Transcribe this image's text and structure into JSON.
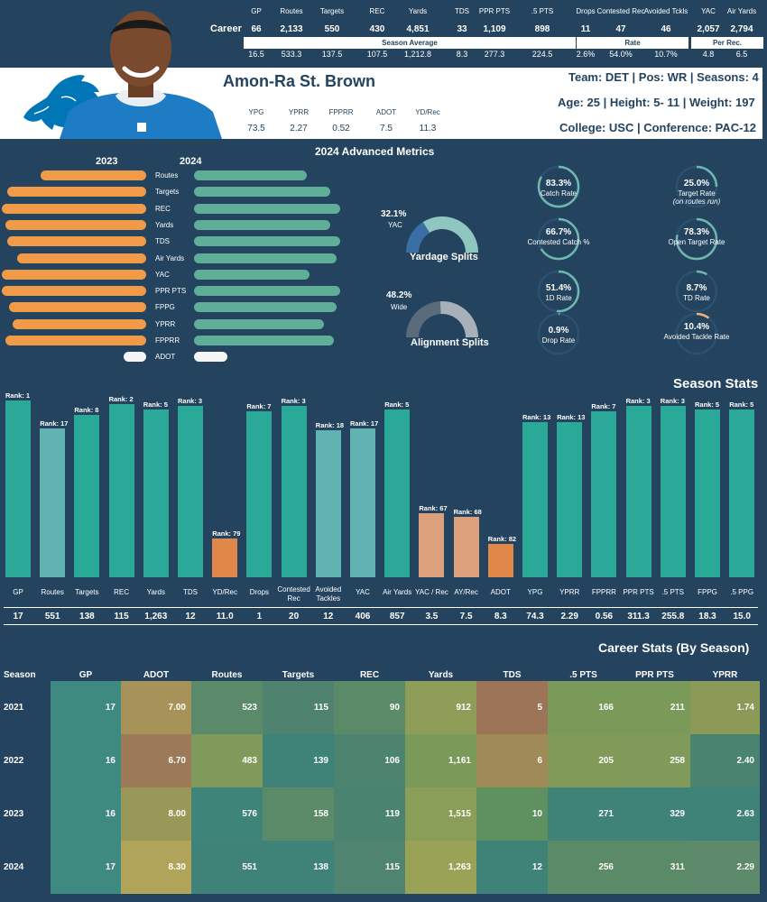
{
  "player": {
    "name": "Amon-Ra St. Brown",
    "team_line": "Team: DET  | Pos: WR | Seasons: 4",
    "bio_line": "Age: 25 | Height: 5- 11 | Weight: 197",
    "college_line": "College: USC  | Conference: PAC-12"
  },
  "career": {
    "row_label": "Career",
    "columns": [
      "GP",
      "Routes",
      "Targets",
      "REC",
      "Yards",
      "TDS",
      "PPR PTS",
      ".5 PTS",
      "Drops",
      "Contested Rec",
      "Avoided Tckls",
      "YAC",
      "Air Yards"
    ],
    "values": [
      "66",
      "2,133",
      "550",
      "430",
      "4,851",
      "33",
      "1,109",
      "898",
      "11",
      "47",
      "46",
      "2,057",
      "2,794"
    ],
    "averages": [
      "16.5",
      "533.3",
      "137.5",
      "107.5",
      "1,212.8",
      "8.3",
      "277.3",
      "224.5",
      "2.6%",
      "54.0%",
      "10.7%",
      "4.8",
      "6.5"
    ],
    "groups": {
      "season_average": "Season Average",
      "rate": "Rate",
      "per_rec": "Per Rec."
    }
  },
  "mini_stats": {
    "labels": [
      "YPG",
      "YPRR",
      "FPPRR",
      "ADOT",
      "YD/Rec"
    ],
    "values": [
      "73.5",
      "2.27",
      "0.52",
      "7.5",
      "11.3"
    ]
  },
  "advanced": {
    "title": "2024 Advanced Metrics",
    "year_left": "2023",
    "year_right": "2024",
    "metrics": [
      "Routes",
      "Targets",
      "REC",
      "Yards",
      "TDS",
      "Air Yards",
      "YAC",
      "PPR PTS",
      "FPPG",
      "YPRR",
      "FPPRR",
      "ADOT"
    ],
    "values_2023": [
      0.57,
      0.75,
      0.78,
      0.76,
      0.75,
      0.7,
      0.78,
      0.78,
      0.74,
      0.72,
      0.76,
      0.12
    ],
    "values_2024": [
      0.54,
      0.65,
      0.7,
      0.65,
      0.7,
      0.68,
      0.55,
      0.7,
      0.68,
      0.62,
      0.67,
      0.16
    ],
    "colors": {
      "left": "#f19a47",
      "right": "#5fae98",
      "neutral": "#f5f5f5"
    },
    "yardage": {
      "pct": "32.1%",
      "sub": "YAC",
      "title": "Yardage Splits",
      "value": 0.321
    },
    "alignment": {
      "pct": "48.2%",
      "sub": "Wide",
      "title": "Alignment Splits",
      "value": 0.482
    },
    "rings": [
      {
        "value": "83.3%",
        "label": "Catch Rate",
        "fraction": 0.833
      },
      {
        "value": "66.7%",
        "label": "Contested Catch %",
        "fraction": 0.667
      },
      {
        "value": "51.4%",
        "label": "1D Rate",
        "fraction": 0.514
      },
      {
        "value": "0.9%",
        "label": "Drop Rate",
        "fraction": 0.009
      },
      {
        "value": "25.0%",
        "label": "Target Rate",
        "sub": "(on routes run)",
        "fraction": 0.25
      },
      {
        "value": "78.3%",
        "label": "Open Target Rate",
        "fraction": 0.783
      },
      {
        "value": "8.7%",
        "label": "TD Rate",
        "fraction": 0.087
      },
      {
        "value": "10.4%",
        "label": "Avoided Tackle Rate",
        "fraction": 0.104
      }
    ]
  },
  "chart_data": {
    "type": "bar",
    "title": "Season Stats",
    "categories": [
      "GP",
      "Routes",
      "Targets",
      "REC",
      "Yards",
      "TDS",
      "YD/Rec",
      "Drops",
      "Contested Rec",
      "Avoided Tackles",
      "YAC",
      "Air Yards",
      "YAC / Rec",
      "AY/Rec",
      "ADOT",
      "YPG",
      "YPRR",
      "FPPRR",
      "PPR PTS",
      ".5 PTS",
      "FPPG",
      ".5 PPG"
    ],
    "ranks": [
      "Rank: 1",
      "Rank: 17",
      "Rank: 8",
      "Rank: 2",
      "Rank: 5",
      "Rank: 3",
      "Rank: 79",
      "Rank: 7",
      "Rank: 3",
      "Rank: 18",
      "Rank: 17",
      "Rank: 5",
      "Rank: 67",
      "Rank: 68",
      "Rank: 82",
      "Rank: 13",
      "Rank: 13",
      "Rank: 7",
      "Rank: 3",
      "Rank: 3",
      "Rank: 5",
      "Rank: 5"
    ],
    "percentile": [
      1.0,
      0.84,
      0.92,
      0.98,
      0.95,
      0.97,
      0.22,
      0.94,
      0.97,
      0.83,
      0.84,
      0.95,
      0.36,
      0.34,
      0.19,
      0.88,
      0.88,
      0.94,
      0.97,
      0.97,
      0.95,
      0.95
    ],
    "values": [
      "17",
      "551",
      "138",
      "115",
      "1,263",
      "12",
      "11.0",
      "1",
      "20",
      "12",
      "406",
      "857",
      "3.5",
      "7.5",
      "8.3",
      "74.3",
      "2.29",
      "0.56",
      "311.3",
      "255.8",
      "18.3",
      "15.0"
    ]
  },
  "career_table": {
    "title": "Career Stats (By Season)",
    "columns": [
      "Season",
      "GP",
      "ADOT",
      "Routes",
      "Targets",
      "REC",
      "Yards",
      "TDS",
      ".5 PTS",
      "PPR PTS",
      "YPRR"
    ],
    "rows": [
      [
        "2021",
        "17",
        "7.00",
        "523",
        "115",
        "90",
        "912",
        "5",
        "166",
        "211",
        "1.74"
      ],
      [
        "2022",
        "16",
        "6.70",
        "483",
        "139",
        "106",
        "1,161",
        "6",
        "205",
        "258",
        "2.40"
      ],
      [
        "2023",
        "16",
        "8.00",
        "576",
        "158",
        "119",
        "1,515",
        "10",
        "271",
        "329",
        "2.63"
      ],
      [
        "2024",
        "17",
        "8.30",
        "551",
        "138",
        "115",
        "1,263",
        "12",
        "256",
        "311",
        "2.29"
      ]
    ],
    "colors": [
      [
        "#3e8a80",
        "#a7925a",
        "#5b8a6a",
        "#4f8370",
        "#5a8a68",
        "#8e9e58",
        "#9c7458",
        "#7a9a5a",
        "#7a9a5a",
        "#8c9a58"
      ],
      [
        "#3e8a80",
        "#9c7a58",
        "#7f9a5a",
        "#3e8278",
        "#4c8470",
        "#7a9a5a",
        "#a08a58",
        "#819a58",
        "#7f9a5a",
        "#4a8470"
      ],
      [
        "#3e8a80",
        "#9a9858",
        "#3f8478",
        "#5a8a68",
        "#4a8470",
        "#8a9e58",
        "#5f9060",
        "#3e8278",
        "#3e8278",
        "#3e8278"
      ],
      [
        "#3e8a80",
        "#b0a45a",
        "#3e8278",
        "#3e8278",
        "#4f8470",
        "#9aa258",
        "#3e8278",
        "#5a8a68",
        "#5a8a68",
        "#5c8a6a"
      ]
    ]
  }
}
